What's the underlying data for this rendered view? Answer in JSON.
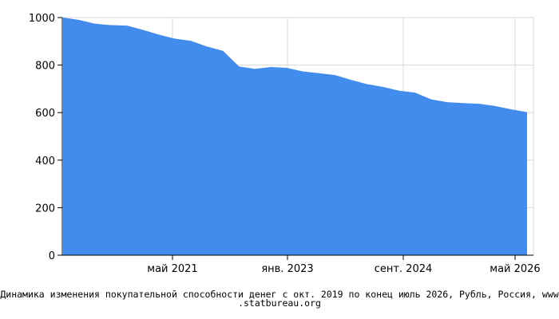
{
  "chart_data": {
    "type": "area",
    "x_tick_labels": [
      "май 2021",
      "янв. 2023",
      "сент. 2024",
      "май 2026"
    ],
    "y_ticks": [
      0,
      200,
      400,
      600,
      800,
      1000
    ],
    "ylim": [
      0,
      1000
    ],
    "grid": true,
    "series": [
      {
        "x": [
          "окт. 2019",
          "янв. 2020",
          "апр. 2020",
          "июль 2020",
          "окт. 2020",
          "янв. 2021",
          "апр. 2021",
          "июль 2021",
          "окт. 2021",
          "янв. 2022",
          "фев. 2022",
          "март 2022",
          "апр. 2022",
          "июль 2022",
          "окт. 2022",
          "янв. 2023",
          "апр. 2023",
          "июль 2023",
          "окт. 2023",
          "янв. 2024",
          "апр. 2024",
          "июль 2024",
          "окт. 2024",
          "янв. 2025",
          "апр. 2025",
          "июль 2025",
          "окт. 2025",
          "янв. 2026",
          "апр. 2026",
          "июль 2026"
        ],
        "values": [
          1000,
          990,
          974,
          968,
          966,
          948,
          928,
          911,
          902,
          878,
          860,
          794,
          784,
          792,
          788,
          773,
          766,
          758,
          738,
          720,
          708,
          692,
          684,
          656,
          644,
          640,
          637,
          628,
          614,
          602
        ]
      }
    ]
  },
  "colors": {
    "area_fill": "#418ced",
    "grid": "#d9d9d9",
    "axis": "#000000"
  },
  "caption": {
    "line1": "Динамика изменения покупательной способности денег с окт. 2019 по конец июль 2026, Рубль, Россия, www",
    "line2": ".statbureau.org"
  }
}
